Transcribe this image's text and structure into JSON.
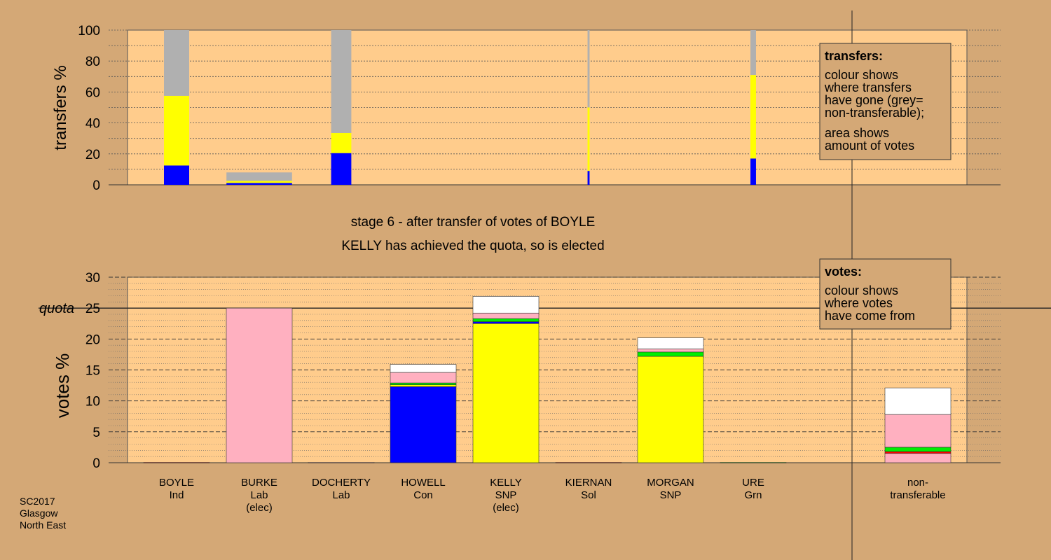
{
  "colors": {
    "background": "#d4a876",
    "plot_bg": "#ffcc8c",
    "Ind": "#ff0000",
    "Lab": "#ffb0c0",
    "Con": "#0000ff",
    "SNP": "#ffff00",
    "Sol": "#ff0000",
    "Grn": "#00ee00",
    "grey": "#b0b0b0",
    "white": "#ffffff",
    "black": "#000000"
  },
  "top_chart": {
    "ylabel": "transfers %",
    "ticks": [
      "0",
      "20",
      "40",
      "60",
      "80",
      "100"
    ],
    "legend": {
      "title": "transfers:",
      "lines1": [
        "colour shows",
        "where transfers",
        "have gone (grey=",
        "non-transferable);"
      ],
      "lines2": [
        "area shows",
        "amount of votes"
      ]
    }
  },
  "stage_text": {
    "line1": "stage 6 - after transfer of votes of BOYLE",
    "line2": "KELLY has achieved the quota, so is elected"
  },
  "bottom_chart": {
    "ylabel": "votes %",
    "quota_label": "quota",
    "ticks": [
      "0",
      "5",
      "10",
      "15",
      "20",
      "25",
      "30"
    ],
    "legend": {
      "title": "votes:",
      "lines": [
        "colour shows",
        "where votes",
        "have come from"
      ]
    }
  },
  "candidates": [
    {
      "name": "BOYLE",
      "party": "Ind",
      "elec": ""
    },
    {
      "name": "BURKE",
      "party": "Lab",
      "elec": "(elec)"
    },
    {
      "name": "DOCHERTY",
      "party": "Lab",
      "elec": ""
    },
    {
      "name": "HOWELL",
      "party": "Con",
      "elec": ""
    },
    {
      "name": "KELLY",
      "party": "SNP",
      "elec": "(elec)"
    },
    {
      "name": "KIERNAN",
      "party": "Sol",
      "elec": ""
    },
    {
      "name": "MORGAN",
      "party": "SNP",
      "elec": ""
    },
    {
      "name": "URE",
      "party": "Grn",
      "elec": ""
    }
  ],
  "nontransferable_label": [
    "non-",
    "transferable"
  ],
  "footer": [
    "SC2017",
    "Glasgow",
    "North East"
  ],
  "chart_data": [
    {
      "type": "bar",
      "title": "",
      "ylabel": "transfers %",
      "ylim": [
        0,
        100
      ],
      "note": "stacked transfer bars for eliminated/surplus candidates",
      "bars": [
        {
          "candidate": "BOYLE",
          "width_ratio": 1.0,
          "segments": [
            {
              "color": "Con",
              "value": 12.5
            },
            {
              "color": "SNP",
              "value": 45
            },
            {
              "color": "grey",
              "value": 42.5
            }
          ]
        },
        {
          "candidate": "BURKE",
          "width_ratio": 2.6,
          "segments": [
            {
              "color": "Con",
              "value": 1.2
            },
            {
              "color": "SNP",
              "value": 1.3
            },
            {
              "color": "grey",
              "value": 5.5
            }
          ]
        },
        {
          "candidate": "DOCHERTY",
          "width_ratio": 0.8,
          "segments": [
            {
              "color": "Con",
              "value": 20.5
            },
            {
              "color": "SNP",
              "value": 13
            },
            {
              "color": "grey",
              "value": 66.5
            }
          ]
        },
        {
          "candidate": "KIERNAN",
          "width_ratio": 0.08,
          "segments": [
            {
              "color": "Con",
              "value": 9
            },
            {
              "color": "SNP",
              "value": 41
            },
            {
              "color": "grey",
              "value": 50
            }
          ]
        },
        {
          "candidate": "URE",
          "width_ratio": 0.22,
          "segments": [
            {
              "color": "Con",
              "value": 17
            },
            {
              "color": "SNP",
              "value": 54
            },
            {
              "color": "grey",
              "value": 29
            }
          ]
        }
      ]
    },
    {
      "type": "bar",
      "title": "",
      "ylabel": "votes %",
      "ylim": [
        0,
        30
      ],
      "quota": 25,
      "categories": [
        "BOYLE",
        "BURKE",
        "DOCHERTY",
        "HOWELL",
        "KELLY",
        "KIERNAN",
        "MORGAN",
        "URE",
        "non-transferable"
      ],
      "stacks": [
        [
          {
            "color": "Ind",
            "value": 0.05
          }
        ],
        [
          {
            "color": "Lab",
            "value": 25
          }
        ],
        [
          {
            "color": "Lab",
            "value": 0.05
          }
        ],
        [
          {
            "color": "Con",
            "value": 12.3
          },
          {
            "color": "SNP",
            "value": 0.3
          },
          {
            "color": "Grn",
            "value": 0.3
          },
          {
            "color": "Lab",
            "value": 1.7
          },
          {
            "color": "white",
            "value": 1.3
          }
        ],
        [
          {
            "color": "SNP",
            "value": 22.5
          },
          {
            "color": "Con",
            "value": 0.3
          },
          {
            "color": "Grn",
            "value": 0.5
          },
          {
            "color": "Lab",
            "value": 0.9
          },
          {
            "color": "white",
            "value": 2.7
          }
        ],
        [
          {
            "color": "Sol",
            "value": 0.05
          }
        ],
        [
          {
            "color": "SNP",
            "value": 17.2
          },
          {
            "color": "Grn",
            "value": 0.7
          },
          {
            "color": "Lab",
            "value": 0.5
          },
          {
            "color": "white",
            "value": 1.8
          }
        ],
        [
          {
            "color": "Grn",
            "value": 0.05
          }
        ],
        [
          {
            "color": "Lab",
            "value": 1.5
          },
          {
            "color": "Ind",
            "value": 0.3
          },
          {
            "color": "Grn",
            "value": 0.7
          },
          {
            "color": "Lab",
            "value": 5.3
          },
          {
            "color": "white",
            "value": 4.3
          }
        ]
      ]
    }
  ]
}
